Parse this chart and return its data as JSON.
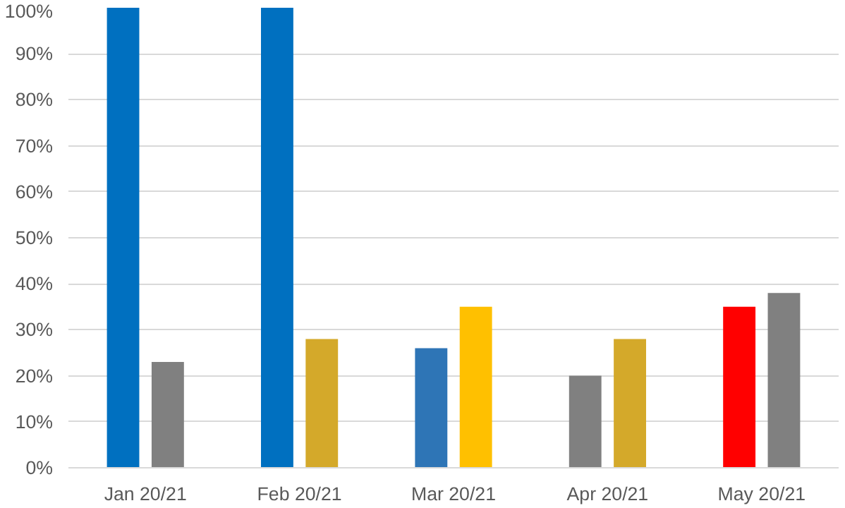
{
  "chart_data": {
    "type": "bar",
    "categories": [
      "Jan 20/21",
      "Feb 20/21",
      "Mar 20/21",
      "Apr 20/21",
      "May 20/21"
    ],
    "series": [
      {
        "colors": [
          "#0070c0",
          "#0070c0",
          "#2e75b6",
          "#808080",
          "#ff0000"
        ],
        "values": [
          100,
          100,
          26,
          20,
          35
        ]
      },
      {
        "colors": [
          "#808080",
          "#d4a92a",
          "#ffc000",
          "#d4a92a",
          "#808080"
        ],
        "values": [
          23,
          28,
          35,
          28,
          38
        ]
      }
    ],
    "ylim": [
      0,
      100
    ],
    "yticks": [
      {
        "value": 0,
        "label": "0%"
      },
      {
        "value": 10,
        "label": "10%"
      },
      {
        "value": 20,
        "label": "20%"
      },
      {
        "value": 30,
        "label": "30%"
      },
      {
        "value": 40,
        "label": "40%"
      },
      {
        "value": 50,
        "label": "50%"
      },
      {
        "value": 60,
        "label": "60%"
      },
      {
        "value": 70,
        "label": "70%"
      },
      {
        "value": 80,
        "label": "80%"
      },
      {
        "value": 90,
        "label": "90%"
      },
      {
        "value": 100,
        "label": "100%"
      }
    ],
    "grid": "y"
  }
}
